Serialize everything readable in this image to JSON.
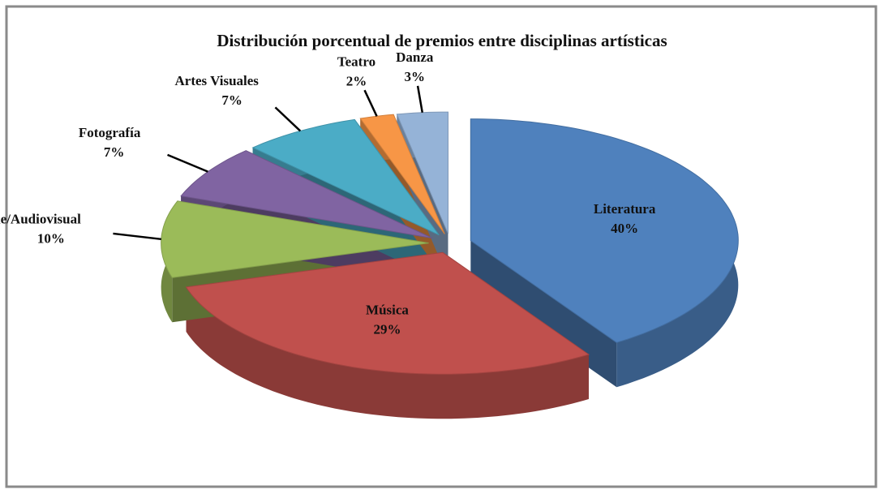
{
  "chart_data": {
    "type": "pie",
    "title": "Distribución porcentual de premios entre disciplinas artísticas",
    "categories": [
      "Literatura",
      "Música",
      "Cine/Audiovisual",
      "Fotografía",
      "Artes Visuales",
      "Teatro",
      "Danza"
    ],
    "values": [
      40,
      29,
      10,
      7,
      7,
      2,
      3
    ],
    "value_labels": [
      "40%",
      "29%",
      "10%",
      "7%",
      "7%",
      "2%",
      "3%"
    ],
    "colors": [
      "#4f81bd",
      "#c0504d",
      "#9bbb59",
      "#8064a2",
      "#4bacc6",
      "#f79646",
      "#95b3d7"
    ]
  }
}
